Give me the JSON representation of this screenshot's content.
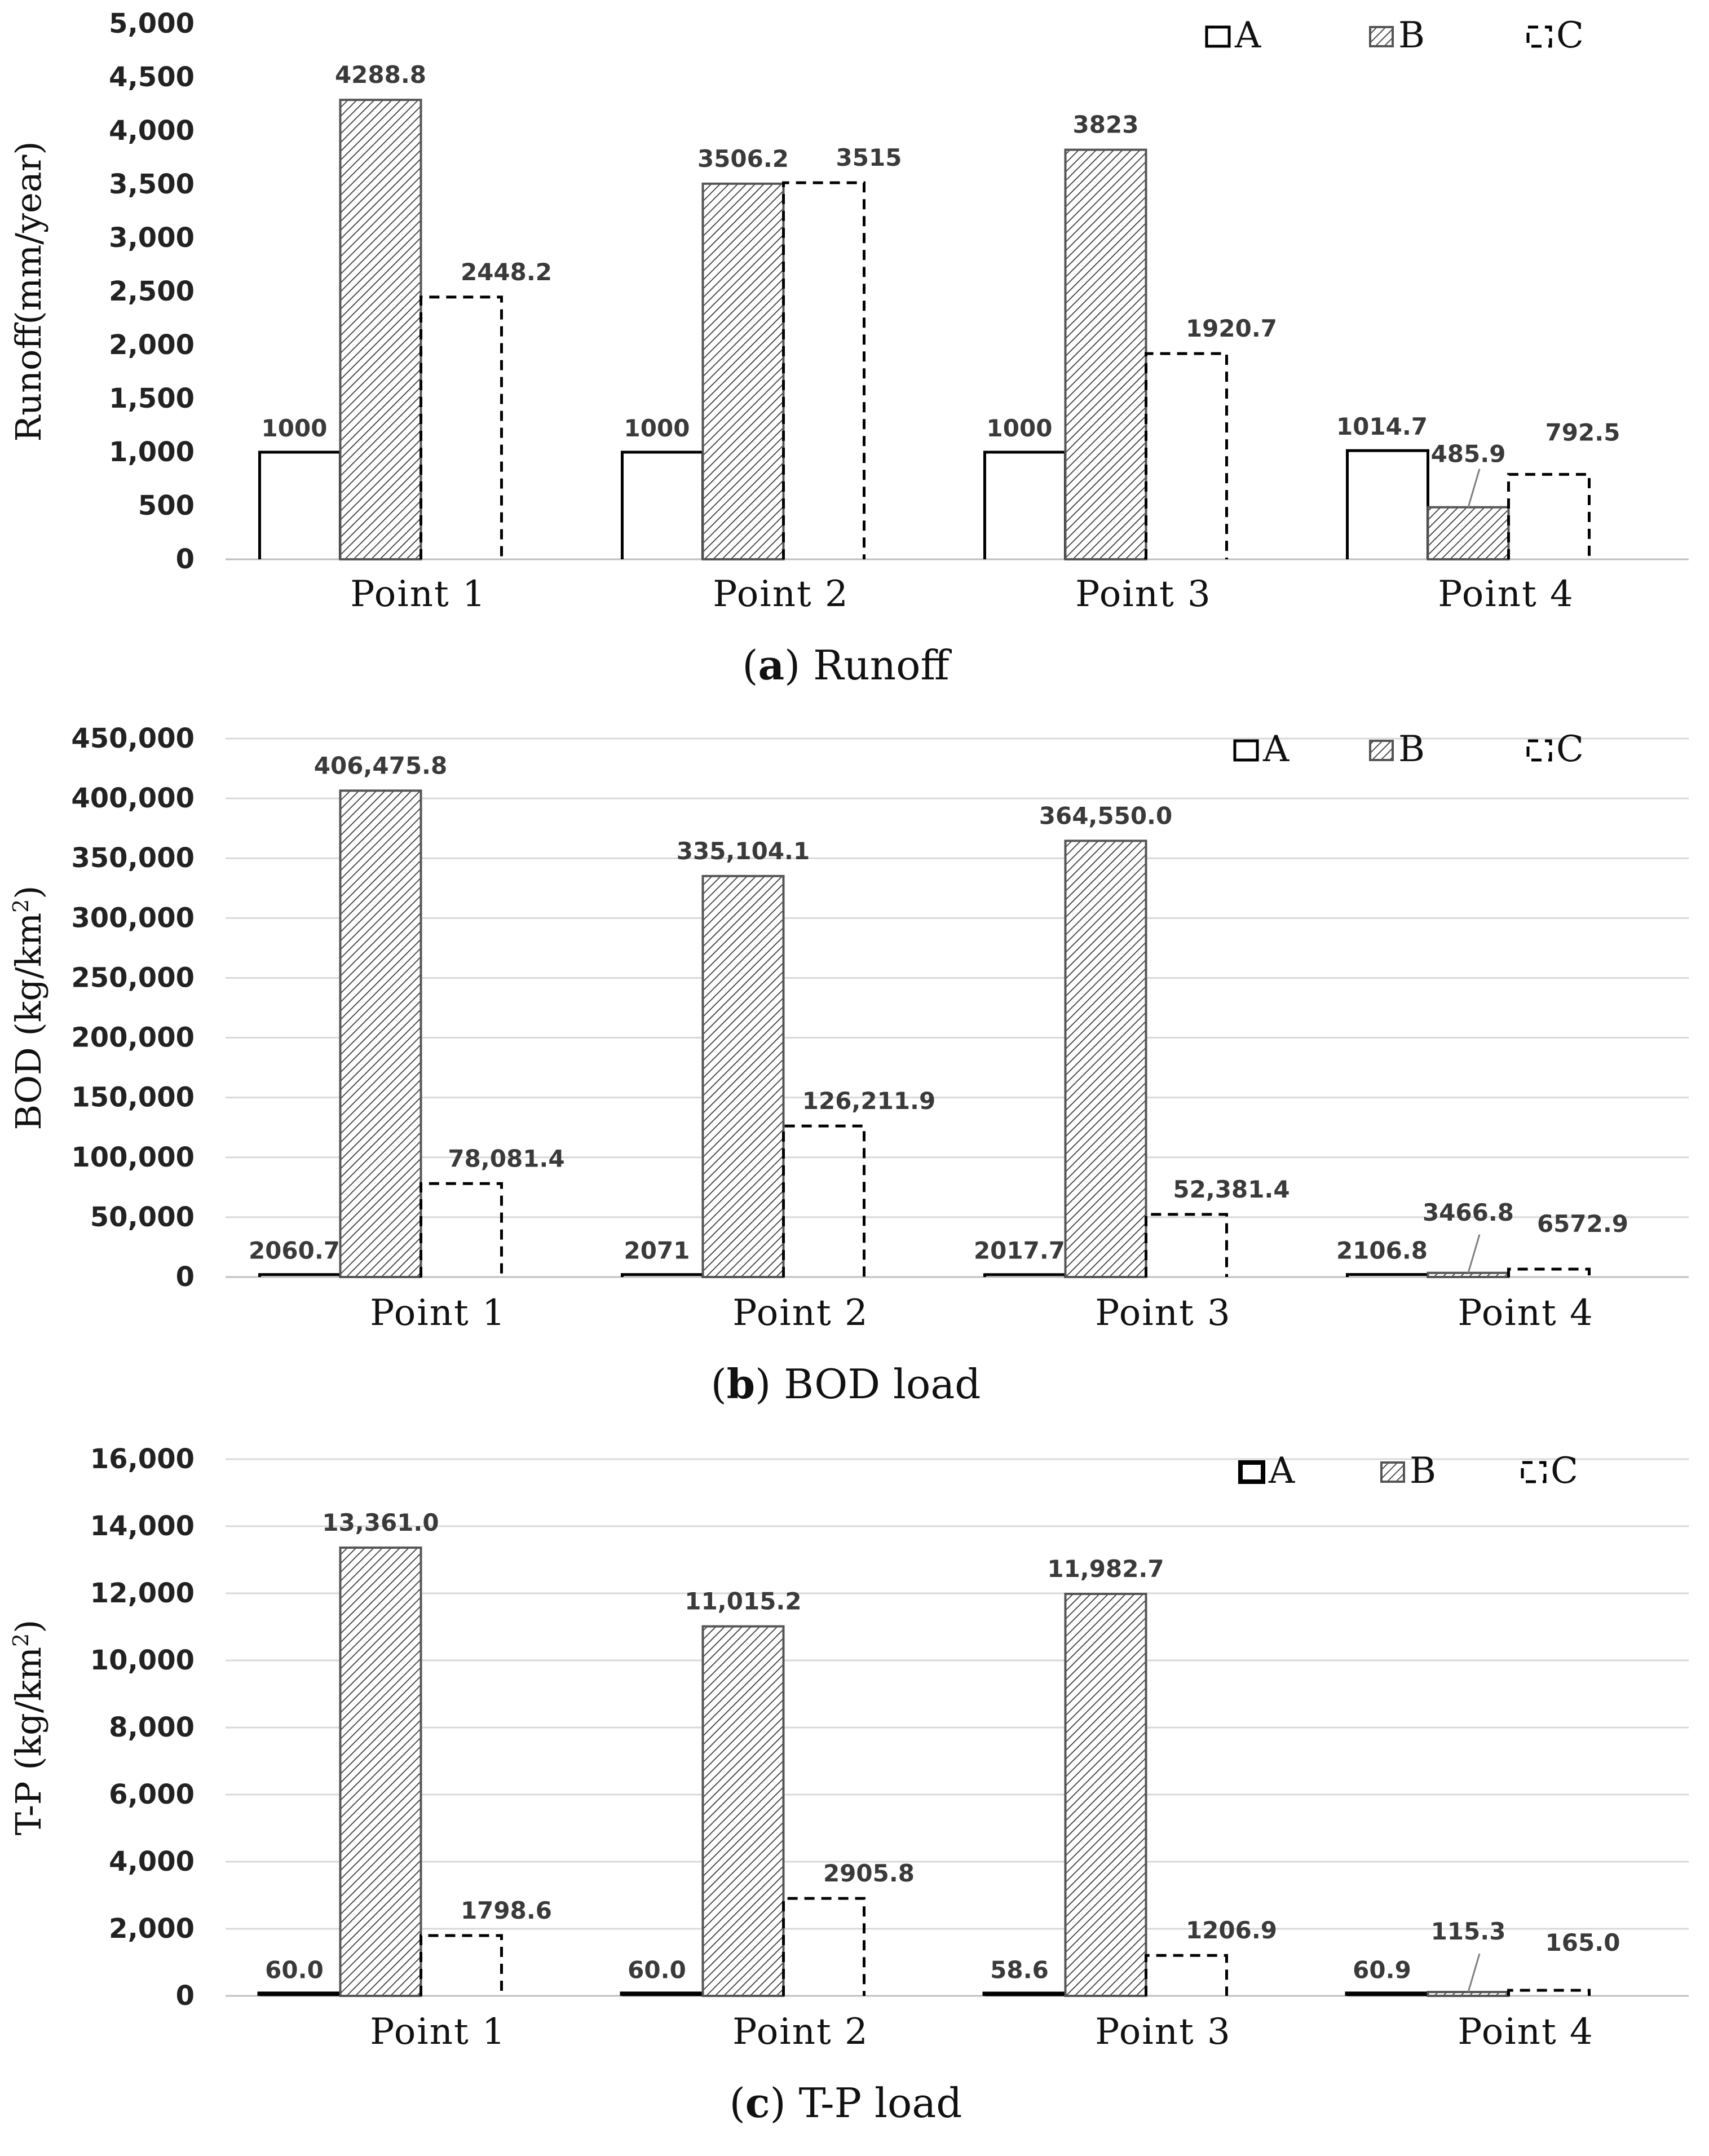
{
  "figure": {
    "legend": [
      "A",
      "B",
      "C"
    ]
  },
  "chart_data": [
    {
      "type": "bar",
      "caption_letter": "a",
      "caption_text": "Runoff",
      "ylabel": "Runoff(mm/year)",
      "ylabel_sup": "",
      "ylabel_tail": "",
      "ylim": [
        0,
        5000
      ],
      "yticks": [
        "0",
        "500",
        "1,000",
        "1,500",
        "2,000",
        "2,500",
        "3,000",
        "3,500",
        "4,000",
        "4,500",
        "5,000"
      ],
      "grid": false,
      "legend_position": "top-right",
      "categories": [
        "Point 1",
        "Point 2",
        "Point 3",
        "Point 4"
      ],
      "series": [
        {
          "name": "A",
          "values": [
            1000,
            1000,
            1000,
            1014.7
          ],
          "labels": [
            "1000",
            "1000",
            "1000",
            "1014.7"
          ]
        },
        {
          "name": "B",
          "values": [
            4288.8,
            3506.2,
            3823,
            485.9
          ],
          "labels": [
            "4288.8",
            "3506.2",
            "3823",
            "485.9"
          ]
        },
        {
          "name": "C",
          "values": [
            2448.2,
            3515,
            1920.7,
            792.5
          ],
          "labels": [
            "2448.2",
            "3515",
            "1920.7",
            "792.5"
          ]
        }
      ]
    },
    {
      "type": "bar",
      "caption_letter": "b",
      "caption_text": "BOD load",
      "ylabel": "BOD (kg/km",
      "ylabel_sup": "2",
      "ylabel_tail": ")",
      "ylim": [
        0,
        450000
      ],
      "yticks": [
        "0",
        "50,000",
        "100,000",
        "150,000",
        "200,000",
        "250,000",
        "300,000",
        "350,000",
        "400,000",
        "450,000"
      ],
      "grid": true,
      "legend_position": "top-right",
      "categories": [
        "Point 1",
        "Point 2",
        "Point 3",
        "Point 4"
      ],
      "series": [
        {
          "name": "A",
          "values": [
            2060.7,
            2071,
            2017.7,
            2106.8
          ],
          "labels": [
            "2060.7",
            "2071",
            "2017.7",
            "2106.8"
          ]
        },
        {
          "name": "B",
          "values": [
            406475.8,
            335104.1,
            364550.0,
            3466.8
          ],
          "labels": [
            "406,475.8",
            "335,104.1",
            "364,550.0",
            "3466.8"
          ]
        },
        {
          "name": "C",
          "values": [
            78081.4,
            126211.9,
            52381.4,
            6572.9
          ],
          "labels": [
            "78,081.4",
            "126,211.9",
            "52,381.4",
            "6572.9"
          ]
        }
      ]
    },
    {
      "type": "bar",
      "caption_letter": "c",
      "caption_text": "T-P load",
      "ylabel": "T-P (kg/km",
      "ylabel_sup": "2",
      "ylabel_tail": ")",
      "ylim": [
        0,
        16000
      ],
      "yticks": [
        "0",
        "2,000",
        "4,000",
        "6,000",
        "8,000",
        "10,000",
        "12,000",
        "14,000",
        "16,000"
      ],
      "grid": true,
      "legend_position": "top-right",
      "categories": [
        "Point 1",
        "Point 2",
        "Point 3",
        "Point 4"
      ],
      "series": [
        {
          "name": "A",
          "values": [
            60.0,
            60.0,
            58.6,
            60.9
          ],
          "labels": [
            "60.0",
            "60.0",
            "58.6",
            "60.9"
          ]
        },
        {
          "name": "B",
          "values": [
            13361.0,
            11015.2,
            11982.7,
            115.3
          ],
          "labels": [
            "13,361.0",
            "11,015.2",
            "11,982.7",
            "115.3"
          ]
        },
        {
          "name": "C",
          "values": [
            1798.6,
            2905.8,
            1206.9,
            165.0
          ],
          "labels": [
            "1798.6",
            "2905.8",
            "1206.9",
            "165.0"
          ]
        }
      ]
    }
  ]
}
